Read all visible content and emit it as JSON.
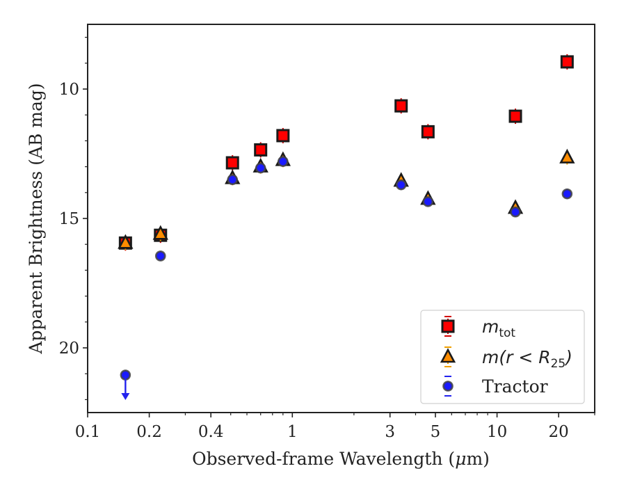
{
  "chart_data": {
    "type": "scatter",
    "xscale": "log",
    "xlim": [
      0.1,
      30
    ],
    "ylim": [
      22.5,
      7.5
    ],
    "y_inverted": true,
    "xlabel_parts": [
      "Observed-frame Wavelength (",
      "μ",
      "m)"
    ],
    "ylabel": "Apparent Brightness (AB mag)",
    "x_ticks": [
      {
        "value": 0.1,
        "label": "0.1"
      },
      {
        "value": 0.2,
        "label": "0.2"
      },
      {
        "value": 0.4,
        "label": "0.4"
      },
      {
        "value": 1,
        "label": "1"
      },
      {
        "value": 3,
        "label": "3"
      },
      {
        "value": 5,
        "label": "5"
      },
      {
        "value": 10,
        "label": "10"
      },
      {
        "value": 20,
        "label": "20"
      }
    ],
    "x_minor_ticks": [
      0.3,
      0.5,
      0.6,
      0.7,
      0.8,
      0.9,
      2,
      4,
      6,
      7,
      8,
      9,
      30
    ],
    "y_ticks": [
      {
        "value": 10,
        "label": "10"
      },
      {
        "value": 15,
        "label": "15"
      },
      {
        "value": 20,
        "label": "20"
      }
    ],
    "y_minor_step": 1,
    "series": [
      {
        "name": "m_tot",
        "legend_main": "m",
        "legend_sub": "tot",
        "marker": "square",
        "face_color": "#ff0000",
        "edge_color": "#1a1a1a",
        "error_color": "#d40000",
        "points": [
          {
            "x": 0.153,
            "y": 15.95
          },
          {
            "x": 0.227,
            "y": 15.65
          },
          {
            "x": 0.51,
            "y": 12.85
          },
          {
            "x": 0.7,
            "y": 12.35
          },
          {
            "x": 0.9,
            "y": 11.8
          },
          {
            "x": 3.4,
            "y": 10.65
          },
          {
            "x": 4.6,
            "y": 11.65
          },
          {
            "x": 12.3,
            "y": 11.05
          },
          {
            "x": 22.0,
            "y": 8.95
          }
        ]
      },
      {
        "name": "m(r < R25)",
        "legend_main": "m(r < R",
        "legend_sub": "25",
        "legend_after": ")",
        "marker": "triangle",
        "face_color": "#ff8c00",
        "edge_color": "#1a1a1a",
        "error_color": "#f0a000",
        "points": [
          {
            "x": 0.153,
            "y": 15.95
          },
          {
            "x": 0.227,
            "y": 15.6
          },
          {
            "x": 0.51,
            "y": 13.45
          },
          {
            "x": 0.7,
            "y": 13.0
          },
          {
            "x": 0.9,
            "y": 12.75
          },
          {
            "x": 3.4,
            "y": 13.55
          },
          {
            "x": 4.6,
            "y": 14.25
          },
          {
            "x": 12.3,
            "y": 14.6
          },
          {
            "x": 22.0,
            "y": 12.65
          }
        ]
      },
      {
        "name": "Tractor",
        "legend_main": "Tractor",
        "marker": "circle",
        "face_color": "#1a1aff",
        "edge_color": "#444444",
        "error_color": "#2222ee",
        "points": [
          {
            "x": 0.153,
            "y": 21.05,
            "upper_limit": true
          },
          {
            "x": 0.227,
            "y": 16.45
          },
          {
            "x": 0.51,
            "y": 13.5
          },
          {
            "x": 0.7,
            "y": 13.05
          },
          {
            "x": 0.9,
            "y": 12.8
          },
          {
            "x": 3.4,
            "y": 13.7
          },
          {
            "x": 4.6,
            "y": 14.35
          },
          {
            "x": 12.3,
            "y": 14.75
          },
          {
            "x": 22.0,
            "y": 14.05
          }
        ]
      }
    ],
    "legend_position": "bottom-right"
  }
}
